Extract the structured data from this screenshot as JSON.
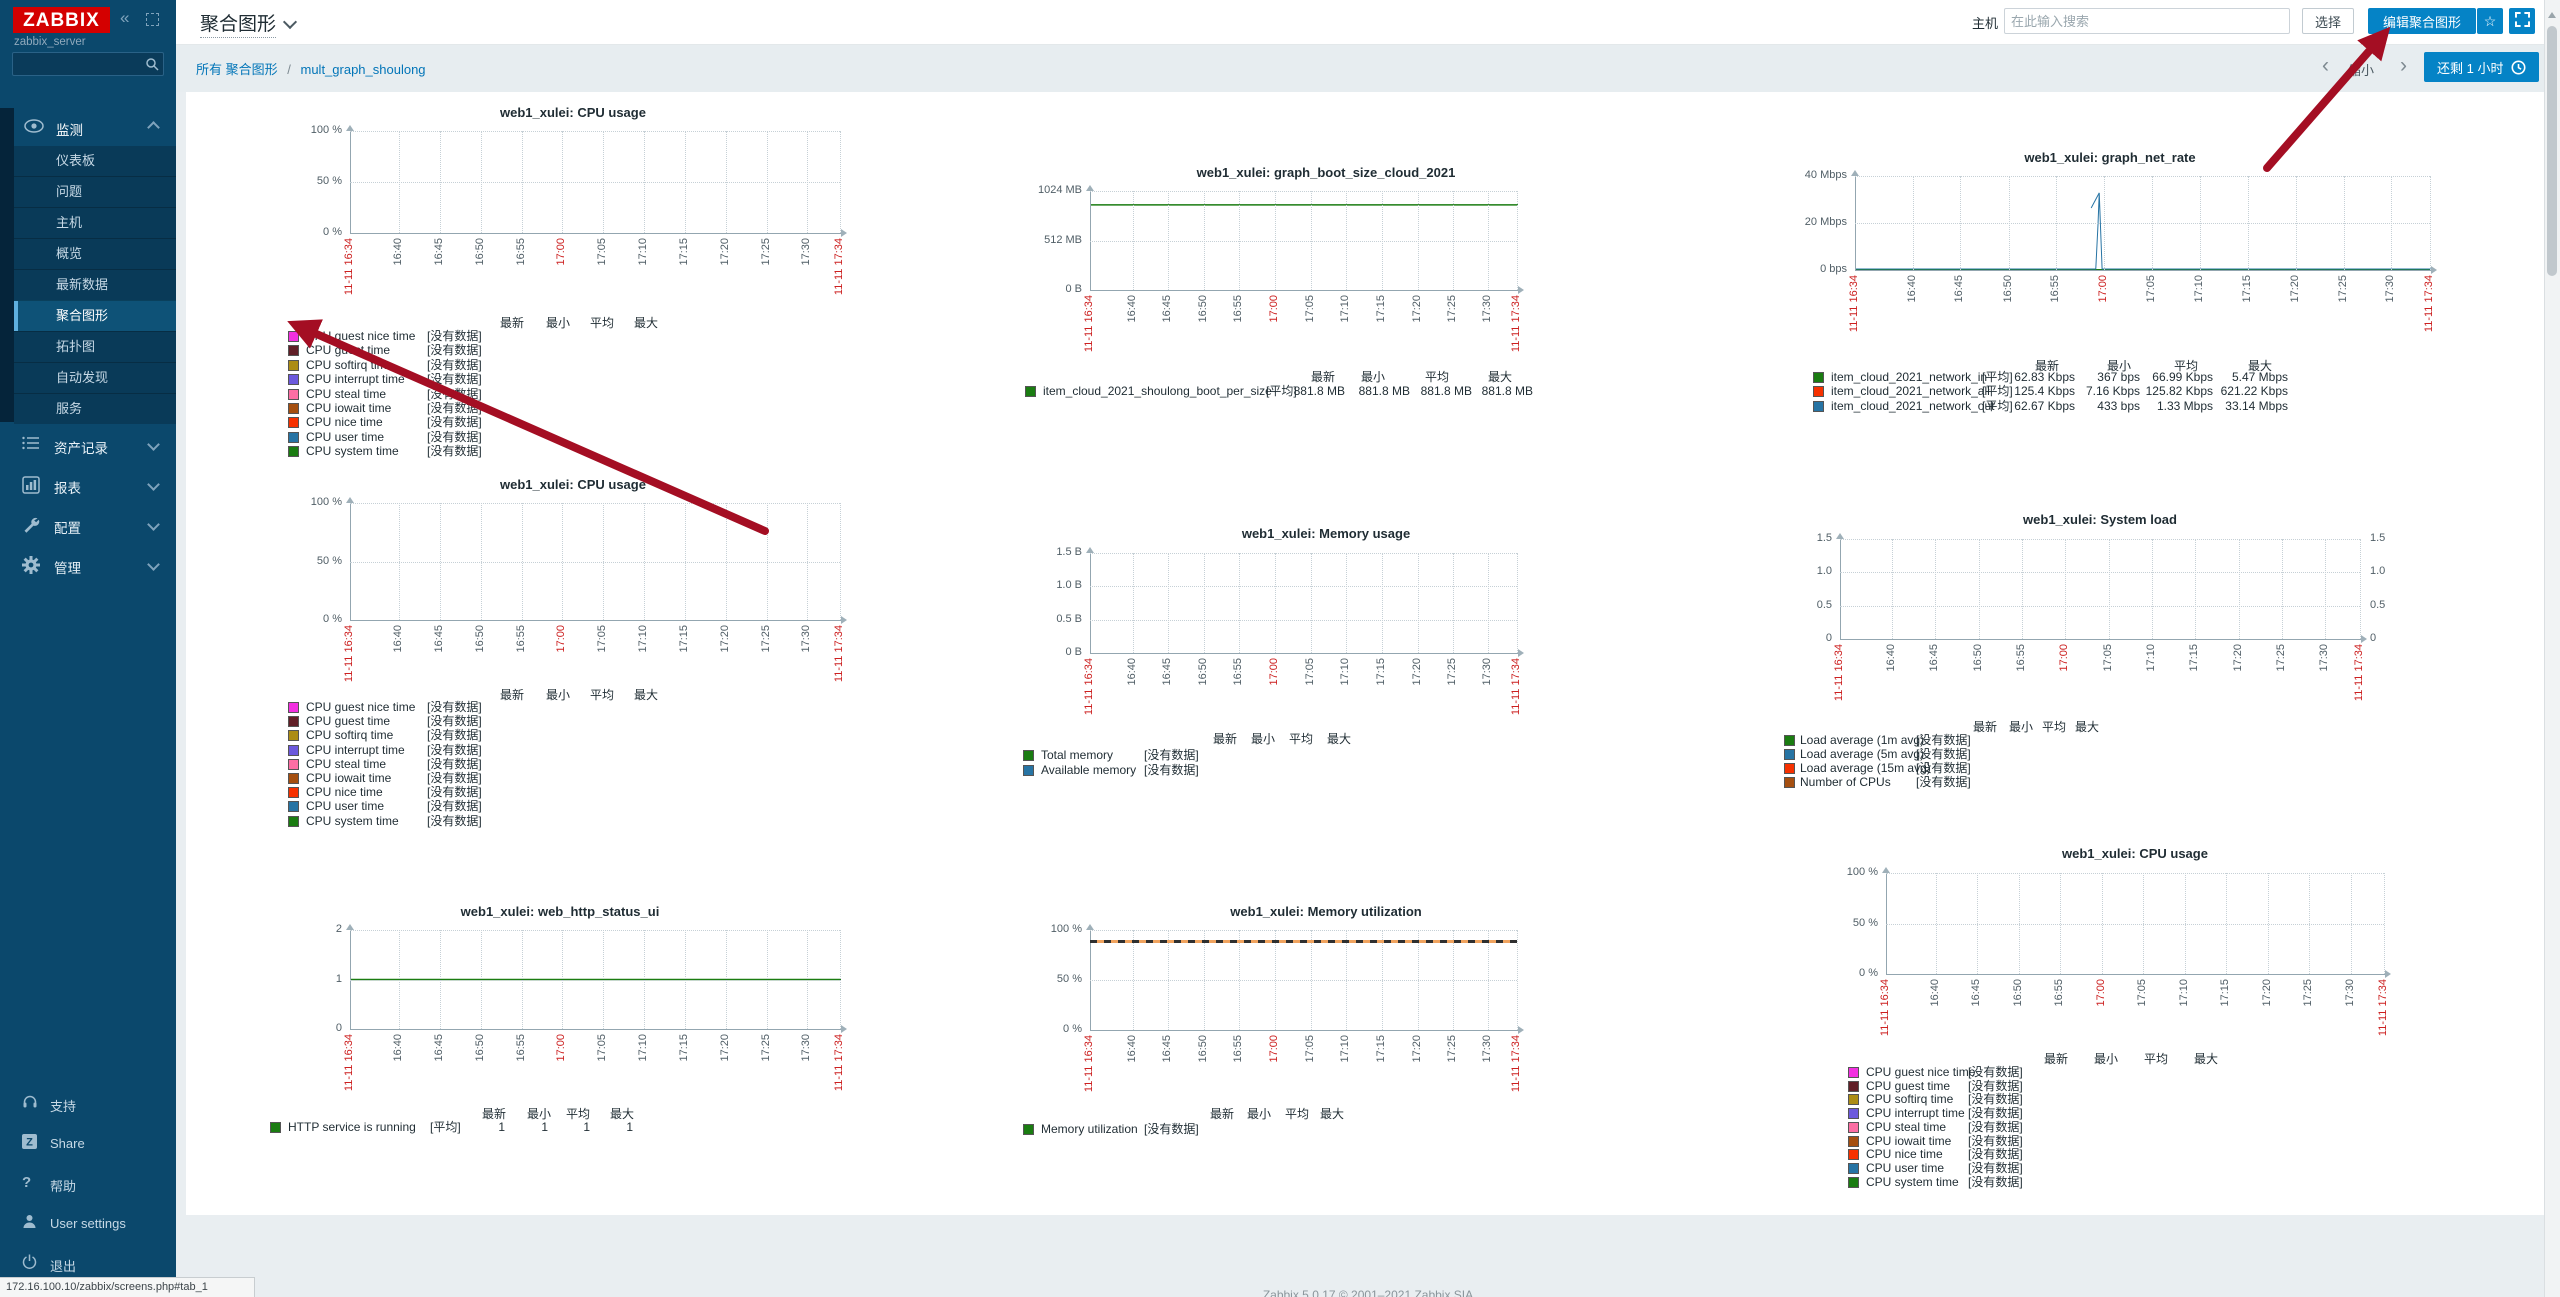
{
  "colors": {
    "accent_blue": "#0583C6",
    "link_blue": "#0275B8",
    "logo_red": "#D40000",
    "annotation_arrow": "#A40E23",
    "axis_red": "#CC2020",
    "sidebar_active_bar": "#5FB0DF"
  },
  "sidebar": {
    "logo": "ZABBIX",
    "server_name": "zabbix_server",
    "search_value": "",
    "sections": [
      {
        "label": "监测",
        "icon": "eye-icon",
        "expanded": true,
        "items": [
          "仪表板",
          "问题",
          "主机",
          "概览",
          "最新数据",
          "聚合图形",
          "拓扑图",
          "自动发现",
          "服务"
        ],
        "active_item": "聚合图形"
      },
      {
        "label": "资产记录",
        "icon": "inventory-icon"
      },
      {
        "label": "报表",
        "icon": "reports-icon"
      },
      {
        "label": "配置",
        "icon": "configuration-icon"
      },
      {
        "label": "管理",
        "icon": "administration-icon"
      }
    ],
    "footer_items": [
      {
        "label": "支持",
        "icon": "support-icon"
      },
      {
        "label": "Share",
        "icon": "share-icon"
      },
      {
        "label": "帮助",
        "icon": "help-icon"
      },
      {
        "label": "User settings",
        "icon": "user-icon"
      },
      {
        "label": "退出",
        "icon": "signout-icon"
      }
    ]
  },
  "header": {
    "title": "聚合图形",
    "host_label": "主机",
    "host_placeholder": "在此输入搜索",
    "host_value": "",
    "select_button": "选择",
    "edit_button": "编辑聚合图形"
  },
  "subheader": {
    "breadcrumb": [
      "所有 聚合图形",
      "mult_graph_shoulong"
    ],
    "breadcrumb_separator": "/",
    "zoom_out_label": "缩小",
    "time_button_label": "还剩 1 小时"
  },
  "statusbar": {
    "url": "172.16.100.10/zabbix/screens.php#tab_1"
  },
  "footer": {
    "copyright": "Zabbix 5.0.17 © 2001–2021 Zabbix SIA"
  },
  "summary_headers": [
    "最新",
    "最小",
    "平均",
    "最大"
  ],
  "no_data_text": "[没有数据]",
  "x_axis": {
    "ticks": [
      {
        "label": "11-11 16:34",
        "pos": 0,
        "red": true
      },
      {
        "label": "16:40",
        "pos": 0.1
      },
      {
        "label": "16:45",
        "pos": 0.183
      },
      {
        "label": "16:50",
        "pos": 0.267
      },
      {
        "label": "16:55",
        "pos": 0.35
      },
      {
        "label": "17:00",
        "pos": 0.433,
        "red": true
      },
      {
        "label": "17:05",
        "pos": 0.517
      },
      {
        "label": "17:10",
        "pos": 0.6
      },
      {
        "label": "17:15",
        "pos": 0.683
      },
      {
        "label": "17:20",
        "pos": 0.767
      },
      {
        "label": "17:25",
        "pos": 0.85
      },
      {
        "label": "17:30",
        "pos": 0.933
      },
      {
        "label": "11-11 17:34",
        "pos": 1,
        "red": true
      }
    ]
  },
  "chart_data": [
    {
      "key": "cpu-usage-1",
      "type": "line",
      "title": "web1_xulei: CPU usage",
      "y_ticks": [
        "100 %",
        "50 %",
        "0 %"
      ],
      "ylim": [
        0,
        100
      ],
      "grid": true,
      "series": [
        {
          "label": "CPU guest nice time",
          "color": "#F230E0",
          "no_data": true
        },
        {
          "label": "CPU guest time",
          "color": "#611F27",
          "no_data": true
        },
        {
          "label": "CPU softirq time",
          "color": "#AC8C14",
          "no_data": true
        },
        {
          "label": "CPU interrupt time",
          "color": "#6C59DC",
          "no_data": true
        },
        {
          "label": "CPU steal time",
          "color": "#FC6EA3",
          "no_data": true
        },
        {
          "label": "CPU iowait time",
          "color": "#A54F10",
          "no_data": true
        },
        {
          "label": "CPU nice time",
          "color": "#F63100",
          "no_data": true
        },
        {
          "label": "CPU user time",
          "color": "#2774A4",
          "no_data": true
        },
        {
          "label": "CPU system time",
          "color": "#1A7C11",
          "no_data": true
        }
      ],
      "lines": []
    },
    {
      "key": "boot-size",
      "type": "line",
      "title": "web1_xulei: graph_boot_size_cloud_2021",
      "y_ticks": [
        "1024 MB",
        "512 MB",
        "0 B"
      ],
      "ylim": [
        0,
        1024
      ],
      "grid": true,
      "series": [
        {
          "label": "item_cloud_2021_shoulong_boot_per_size",
          "color": "#1A7C11",
          "func": "[平均]",
          "values": [
            "881.8 MB",
            "881.8 MB",
            "881.8 MB",
            "881.8 MB"
          ]
        }
      ],
      "lines": [
        {
          "color": "#1A7C11",
          "width": 1.5,
          "points": [
            [
              0,
              0.14
            ],
            [
              1,
              0.14
            ]
          ]
        }
      ]
    },
    {
      "key": "net-rate",
      "type": "line",
      "title": "web1_xulei: graph_net_rate",
      "y_ticks": [
        "40 Mbps",
        "20 Mbps",
        "0 bps"
      ],
      "ylim": [
        0,
        40000000
      ],
      "grid": true,
      "series": [
        {
          "label": "item_cloud_2021_network_in",
          "color": "#1A7C11",
          "func": "[平均]",
          "values": [
            "62.83 Kbps",
            "367 bps",
            "66.99 Kbps",
            "5.47 Mbps"
          ]
        },
        {
          "label": "item_cloud_2021_network_all",
          "color": "#F63100",
          "func": "[平均]",
          "values": [
            "125.4 Kbps",
            "7.16 Kbps",
            "125.82 Kbps",
            "621.22 Kbps"
          ]
        },
        {
          "label": "item_cloud_2021_network_out",
          "color": "#2774A4",
          "func": "[平均]",
          "values": [
            "62.67 Kbps",
            "433 bps",
            "1.33 Mbps",
            "33.14 Mbps"
          ]
        }
      ],
      "lines": [
        {
          "color": "#1A7C11",
          "width": 1,
          "points": [
            [
              0,
              0.995
            ],
            [
              1,
              0.995
            ]
          ]
        },
        {
          "color": "#2774A4",
          "width": 1,
          "points": [
            [
              0,
              0.99
            ],
            [
              0.417,
              0.99
            ],
            [
              0.421,
              0.5
            ],
            [
              0.423,
              0.18
            ],
            [
              0.428,
              0.99
            ],
            [
              1,
              0.99
            ]
          ]
        },
        {
          "color": "#2774A4",
          "width": 1,
          "points": [
            [
              0.409,
              0.34
            ],
            [
              0.423,
              0.18
            ]
          ]
        }
      ]
    },
    {
      "key": "cpu-usage-2",
      "type": "line",
      "title": "web1_xulei: CPU usage",
      "y_ticks": [
        "100 %",
        "50 %",
        "0 %"
      ],
      "ylim": [
        0,
        100
      ],
      "grid": true,
      "series": [
        {
          "label": "CPU guest nice time",
          "color": "#F230E0",
          "no_data": true
        },
        {
          "label": "CPU guest time",
          "color": "#611F27",
          "no_data": true
        },
        {
          "label": "CPU softirq time",
          "color": "#AC8C14",
          "no_data": true
        },
        {
          "label": "CPU interrupt time",
          "color": "#6C59DC",
          "no_data": true
        },
        {
          "label": "CPU steal time",
          "color": "#FC6EA3",
          "no_data": true
        },
        {
          "label": "CPU iowait time",
          "color": "#A54F10",
          "no_data": true
        },
        {
          "label": "CPU nice time",
          "color": "#F63100",
          "no_data": true
        },
        {
          "label": "CPU user time",
          "color": "#2774A4",
          "no_data": true
        },
        {
          "label": "CPU system time",
          "color": "#1A7C11",
          "no_data": true
        }
      ],
      "lines": []
    },
    {
      "key": "memory-usage",
      "type": "line",
      "title": "web1_xulei: Memory usage",
      "y_ticks": [
        "1.5 B",
        "1.0 B",
        "0.5 B",
        "0 B"
      ],
      "ylim": [
        0,
        1.5
      ],
      "grid": true,
      "series": [
        {
          "label": "Total memory",
          "color": "#1A7C11",
          "no_data": true
        },
        {
          "label": "Available memory",
          "color": "#2774A4",
          "no_data": true
        }
      ],
      "lines": []
    },
    {
      "key": "system-load",
      "type": "line",
      "title": "web1_xulei: System load",
      "y_ticks": [
        "1.5",
        "1.0",
        "0.5",
        "0"
      ],
      "ylim": [
        0,
        1.5
      ],
      "grid": true,
      "y_axis_right": true,
      "series": [
        {
          "label": "Load average (1m avg)",
          "color": "#1A7C11",
          "no_data": true
        },
        {
          "label": "Load average (5m avg)",
          "color": "#2774A4",
          "no_data": true
        },
        {
          "label": "Load average (15m avg)",
          "color": "#F63100",
          "no_data": true
        },
        {
          "label": "Number of CPUs",
          "color": "#A54F10",
          "no_data": true
        }
      ],
      "lines": []
    },
    {
      "key": "web-http-status",
      "type": "line",
      "title": "web1_xulei: web_http_status_ui",
      "y_ticks": [
        "2",
        "1",
        "0"
      ],
      "ylim": [
        0,
        2
      ],
      "grid": true,
      "series": [
        {
          "label": "HTTP service is running",
          "color": "#1A7C11",
          "func": "[平均]",
          "values": [
            "1",
            "1",
            "1",
            "1"
          ]
        }
      ],
      "lines": [
        {
          "color": "#1A7C11",
          "width": 1.5,
          "points": [
            [
              0,
              0.5
            ],
            [
              1,
              0.5
            ]
          ]
        }
      ]
    },
    {
      "key": "memory-utilization",
      "type": "line",
      "title": "web1_xulei: Memory utilization",
      "y_ticks": [
        "100 %",
        "50 %",
        "0 %"
      ],
      "ylim": [
        0,
        100
      ],
      "grid": true,
      "series": [
        {
          "label": "Memory utilization",
          "color": "#1A7C11",
          "no_data": true
        }
      ],
      "lines": [],
      "trigger_line": {
        "y": 0.11,
        "style": "dashed"
      }
    },
    {
      "key": "cpu-usage-3",
      "type": "line",
      "title": "web1_xulei: CPU usage",
      "y_ticks": [
        "100 %",
        "50 %",
        "0 %"
      ],
      "ylim": [
        0,
        100
      ],
      "grid": true,
      "series": [
        {
          "label": "CPU guest nice time",
          "color": "#F230E0",
          "no_data": true
        },
        {
          "label": "CPU guest time",
          "color": "#611F27",
          "no_data": true
        },
        {
          "label": "CPU softirq time",
          "color": "#AC8C14",
          "no_data": true
        },
        {
          "label": "CPU interrupt time",
          "color": "#6C59DC",
          "no_data": true
        },
        {
          "label": "CPU steal time",
          "color": "#FC6EA3",
          "no_data": true
        },
        {
          "label": "CPU iowait time",
          "color": "#A54F10",
          "no_data": true
        },
        {
          "label": "CPU nice time",
          "color": "#F63100",
          "no_data": true
        },
        {
          "label": "CPU user time",
          "color": "#2774A4",
          "no_data": true
        },
        {
          "label": "CPU system time",
          "color": "#1A7C11",
          "no_data": true
        }
      ],
      "lines": []
    }
  ]
}
